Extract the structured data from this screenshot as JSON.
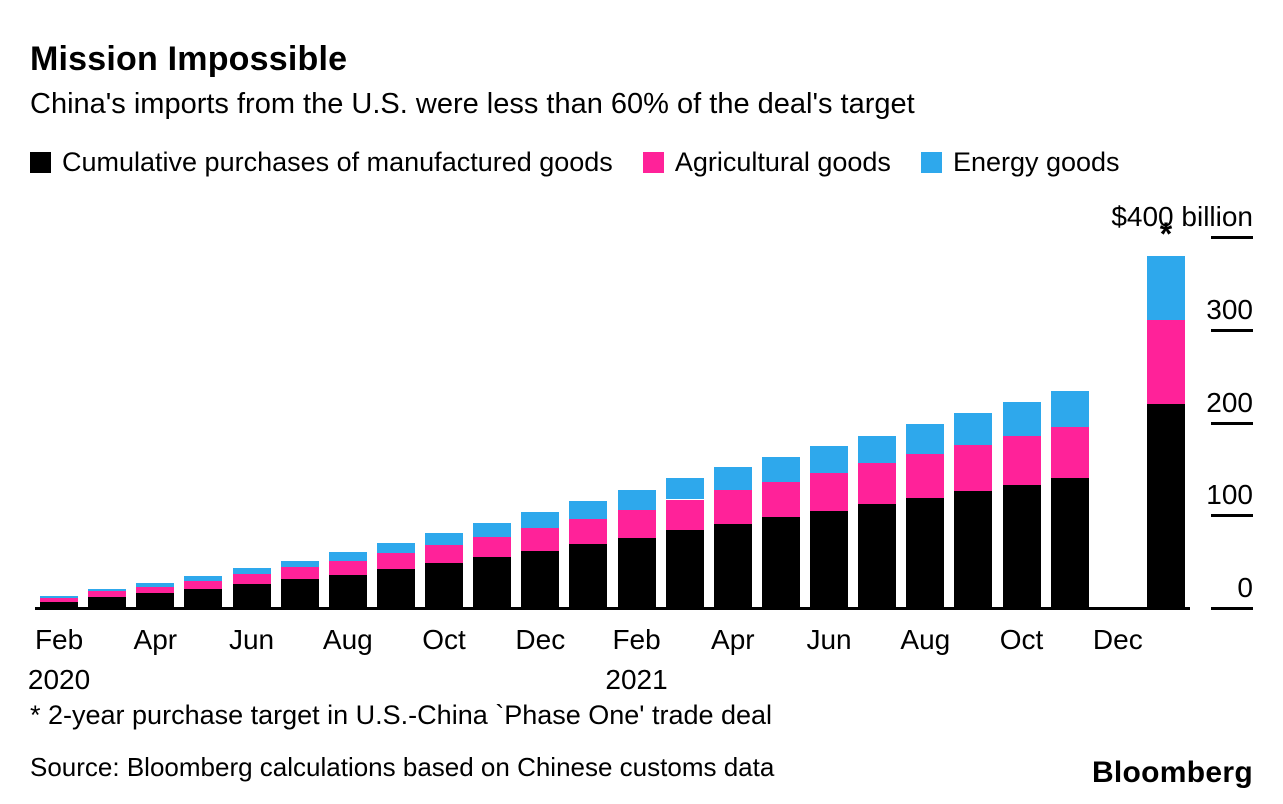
{
  "header": {
    "title": "Mission Impossible",
    "subtitle": "China's imports from the U.S. were less than 60% of the deal's target"
  },
  "chart_data": {
    "type": "bar",
    "stacked": true,
    "unit": "$ billion",
    "ylim": [
      0,
      400
    ],
    "grid": false,
    "legend_position": "top",
    "y_axis": {
      "side": "right",
      "ticks": [
        {
          "value": 400,
          "label": "$400 billion"
        },
        {
          "value": 300,
          "label": "300"
        },
        {
          "value": 200,
          "label": "200"
        },
        {
          "value": 100,
          "label": "100"
        },
        {
          "value": 0,
          "label": "0"
        }
      ]
    },
    "x": [
      "Feb 2020",
      "Mar 2020",
      "Apr 2020",
      "May 2020",
      "Jun 2020",
      "Jul 2020",
      "Aug 2020",
      "Sep 2020",
      "Oct 2020",
      "Nov 2020",
      "Dec 2020",
      "Jan 2021",
      "Feb 2021",
      "Mar 2021",
      "Apr 2021",
      "May 2021",
      "Jun 2021",
      "Jul 2021",
      "Aug 2021",
      "Sep 2021",
      "Oct 2021",
      "Nov 2021",
      "Dec 2021",
      "2-year Phase One target"
    ],
    "x_ticks": [
      {
        "slot": 0,
        "label": "Feb"
      },
      {
        "slot": 2,
        "label": "Apr"
      },
      {
        "slot": 4,
        "label": "Jun"
      },
      {
        "slot": 6,
        "label": "Aug"
      },
      {
        "slot": 8,
        "label": "Oct"
      },
      {
        "slot": 10,
        "label": "Dec"
      },
      {
        "slot": 12,
        "label": "Feb"
      },
      {
        "slot": 14,
        "label": "Apr"
      },
      {
        "slot": 16,
        "label": "Jun"
      },
      {
        "slot": 18,
        "label": "Aug"
      },
      {
        "slot": 20,
        "label": "Oct"
      },
      {
        "slot": 22,
        "label": "Dec"
      }
    ],
    "year_labels": [
      {
        "slot": 0,
        "label": "2020"
      },
      {
        "slot": 12,
        "label": "2021"
      }
    ],
    "target_marker": "*",
    "series": [
      {
        "name": "Cumulative purchases of manufactured goods",
        "color": "#000000",
        "values": [
          7,
          12,
          16,
          20,
          26,
          31,
          36,
          42,
          49,
          55,
          62,
          69,
          76,
          84,
          91,
          98,
          105,
          112,
          119,
          126,
          133,
          140,
          null,
          220
        ]
      },
      {
        "name": "Agricultural goods",
        "color": "#ff2299",
        "values": [
          4,
          6,
          7,
          9,
          11,
          13,
          15,
          17,
          19,
          22,
          24,
          27,
          30,
          33,
          36,
          38,
          41,
          44,
          47,
          50,
          52,
          55,
          null,
          90
        ]
      },
      {
        "name": "Energy goods",
        "color": "#2ea8ec",
        "values": [
          2,
          3,
          4,
          5,
          6,
          7,
          9,
          11,
          13,
          15,
          17,
          19,
          21,
          23,
          25,
          27,
          29,
          30,
          32,
          34,
          37,
          39,
          null,
          70
        ]
      }
    ]
  },
  "footnote": "* 2-year purchase target in U.S.-China `Phase One' trade deal",
  "source": "Source: Bloomberg calculations based on Chinese customs data",
  "brand": "Bloomberg"
}
